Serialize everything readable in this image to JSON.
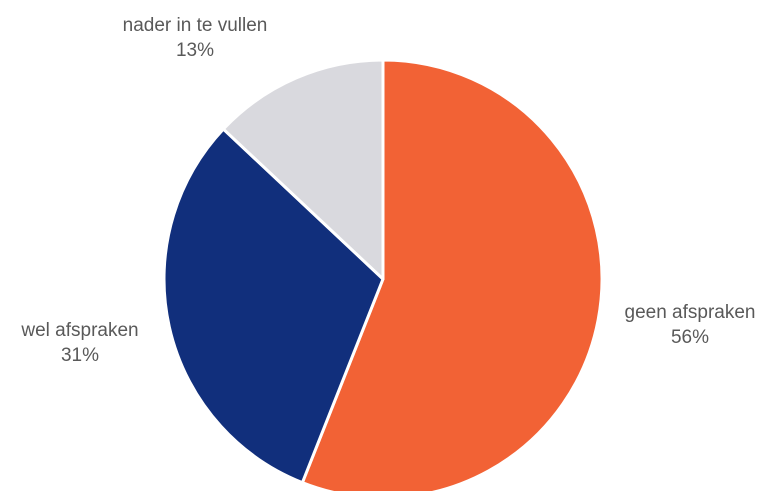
{
  "chart_data": {
    "type": "pie",
    "slices": [
      {
        "label": "geen afspraken",
        "value": 56,
        "value_label": "56%",
        "color": "#F26235"
      },
      {
        "label": "wel afspraken",
        "value": 31,
        "value_label": "31%",
        "color": "#112F7C"
      },
      {
        "label": "nader in te vullen",
        "value": 13,
        "value_label": "13%",
        "color": "#D9D9DE"
      }
    ],
    "start_angle_deg": 0,
    "direction": "clockwise",
    "slice_border_color": "#ffffff",
    "label_color": "#595959"
  }
}
